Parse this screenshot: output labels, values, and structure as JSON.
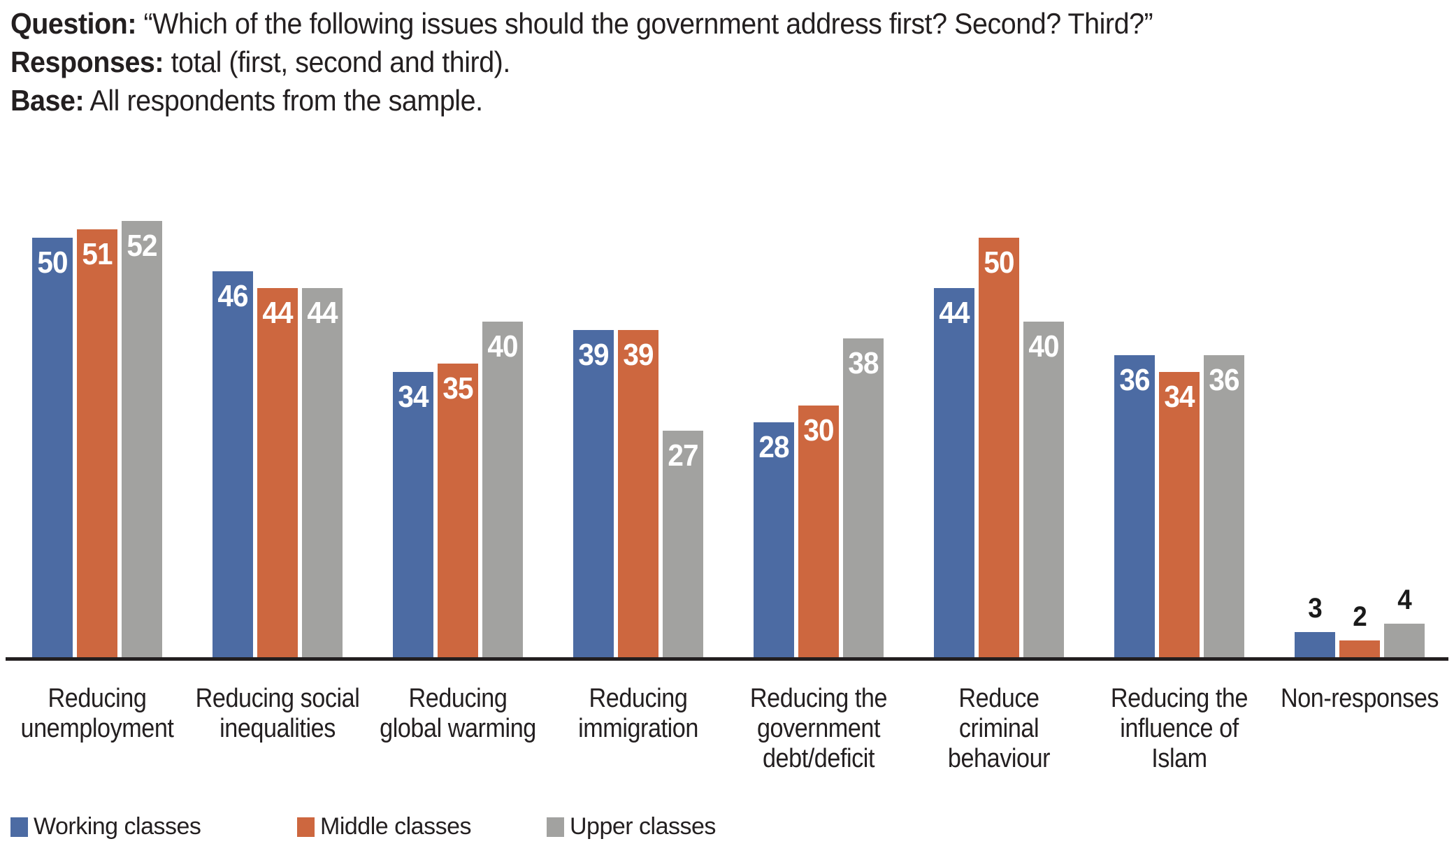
{
  "header": {
    "question_label": "Question:",
    "question_text": " “Which of the following issues should the government address first? Second? Third?”",
    "responses_label": "Responses:",
    "responses_text": " total (first, second and third).",
    "base_label": "Base:",
    "base_text": " All respondents from the sample."
  },
  "chart_data": {
    "type": "bar",
    "title": "",
    "xlabel": "",
    "ylabel": "",
    "ylim": [
      0,
      52
    ],
    "gridlines": "off",
    "y_axis_visible": false,
    "value_labels": "on",
    "legend_position": "bottom",
    "axis_line_color": "#231f20",
    "inside_label_color": "#ffffff",
    "outside_label_color": "#1a1a1a",
    "outside_label_threshold": 10,
    "categories": [
      "Reducing\nunemployment",
      "Reducing social\ninequalities",
      "Reducing\nglobal warming",
      "Reducing\nimmigration",
      "Reducing the\ngovernment\ndebt/deficit",
      "Reduce\ncriminal\nbehaviour",
      "Reducing the\ninfluence of\nIslam",
      "Non-responses"
    ],
    "series": [
      {
        "name": "Working classes",
        "color": "#4C6BA3",
        "values": [
          50,
          46,
          34,
          39,
          28,
          44,
          36,
          3
        ]
      },
      {
        "name": "Middle classes",
        "color": "#CD673F",
        "values": [
          51,
          44,
          35,
          39,
          30,
          50,
          34,
          2
        ]
      },
      {
        "name": "Upper classes",
        "color": "#A2A2A0",
        "values": [
          52,
          44,
          40,
          27,
          38,
          40,
          36,
          4
        ]
      }
    ]
  },
  "legend": {
    "items": [
      {
        "label": "Working classes",
        "color": "#4C6BA3"
      },
      {
        "label": "Middle classes",
        "color": "#CD673F"
      },
      {
        "label": "Upper classes",
        "color": "#A2A2A0"
      }
    ]
  }
}
